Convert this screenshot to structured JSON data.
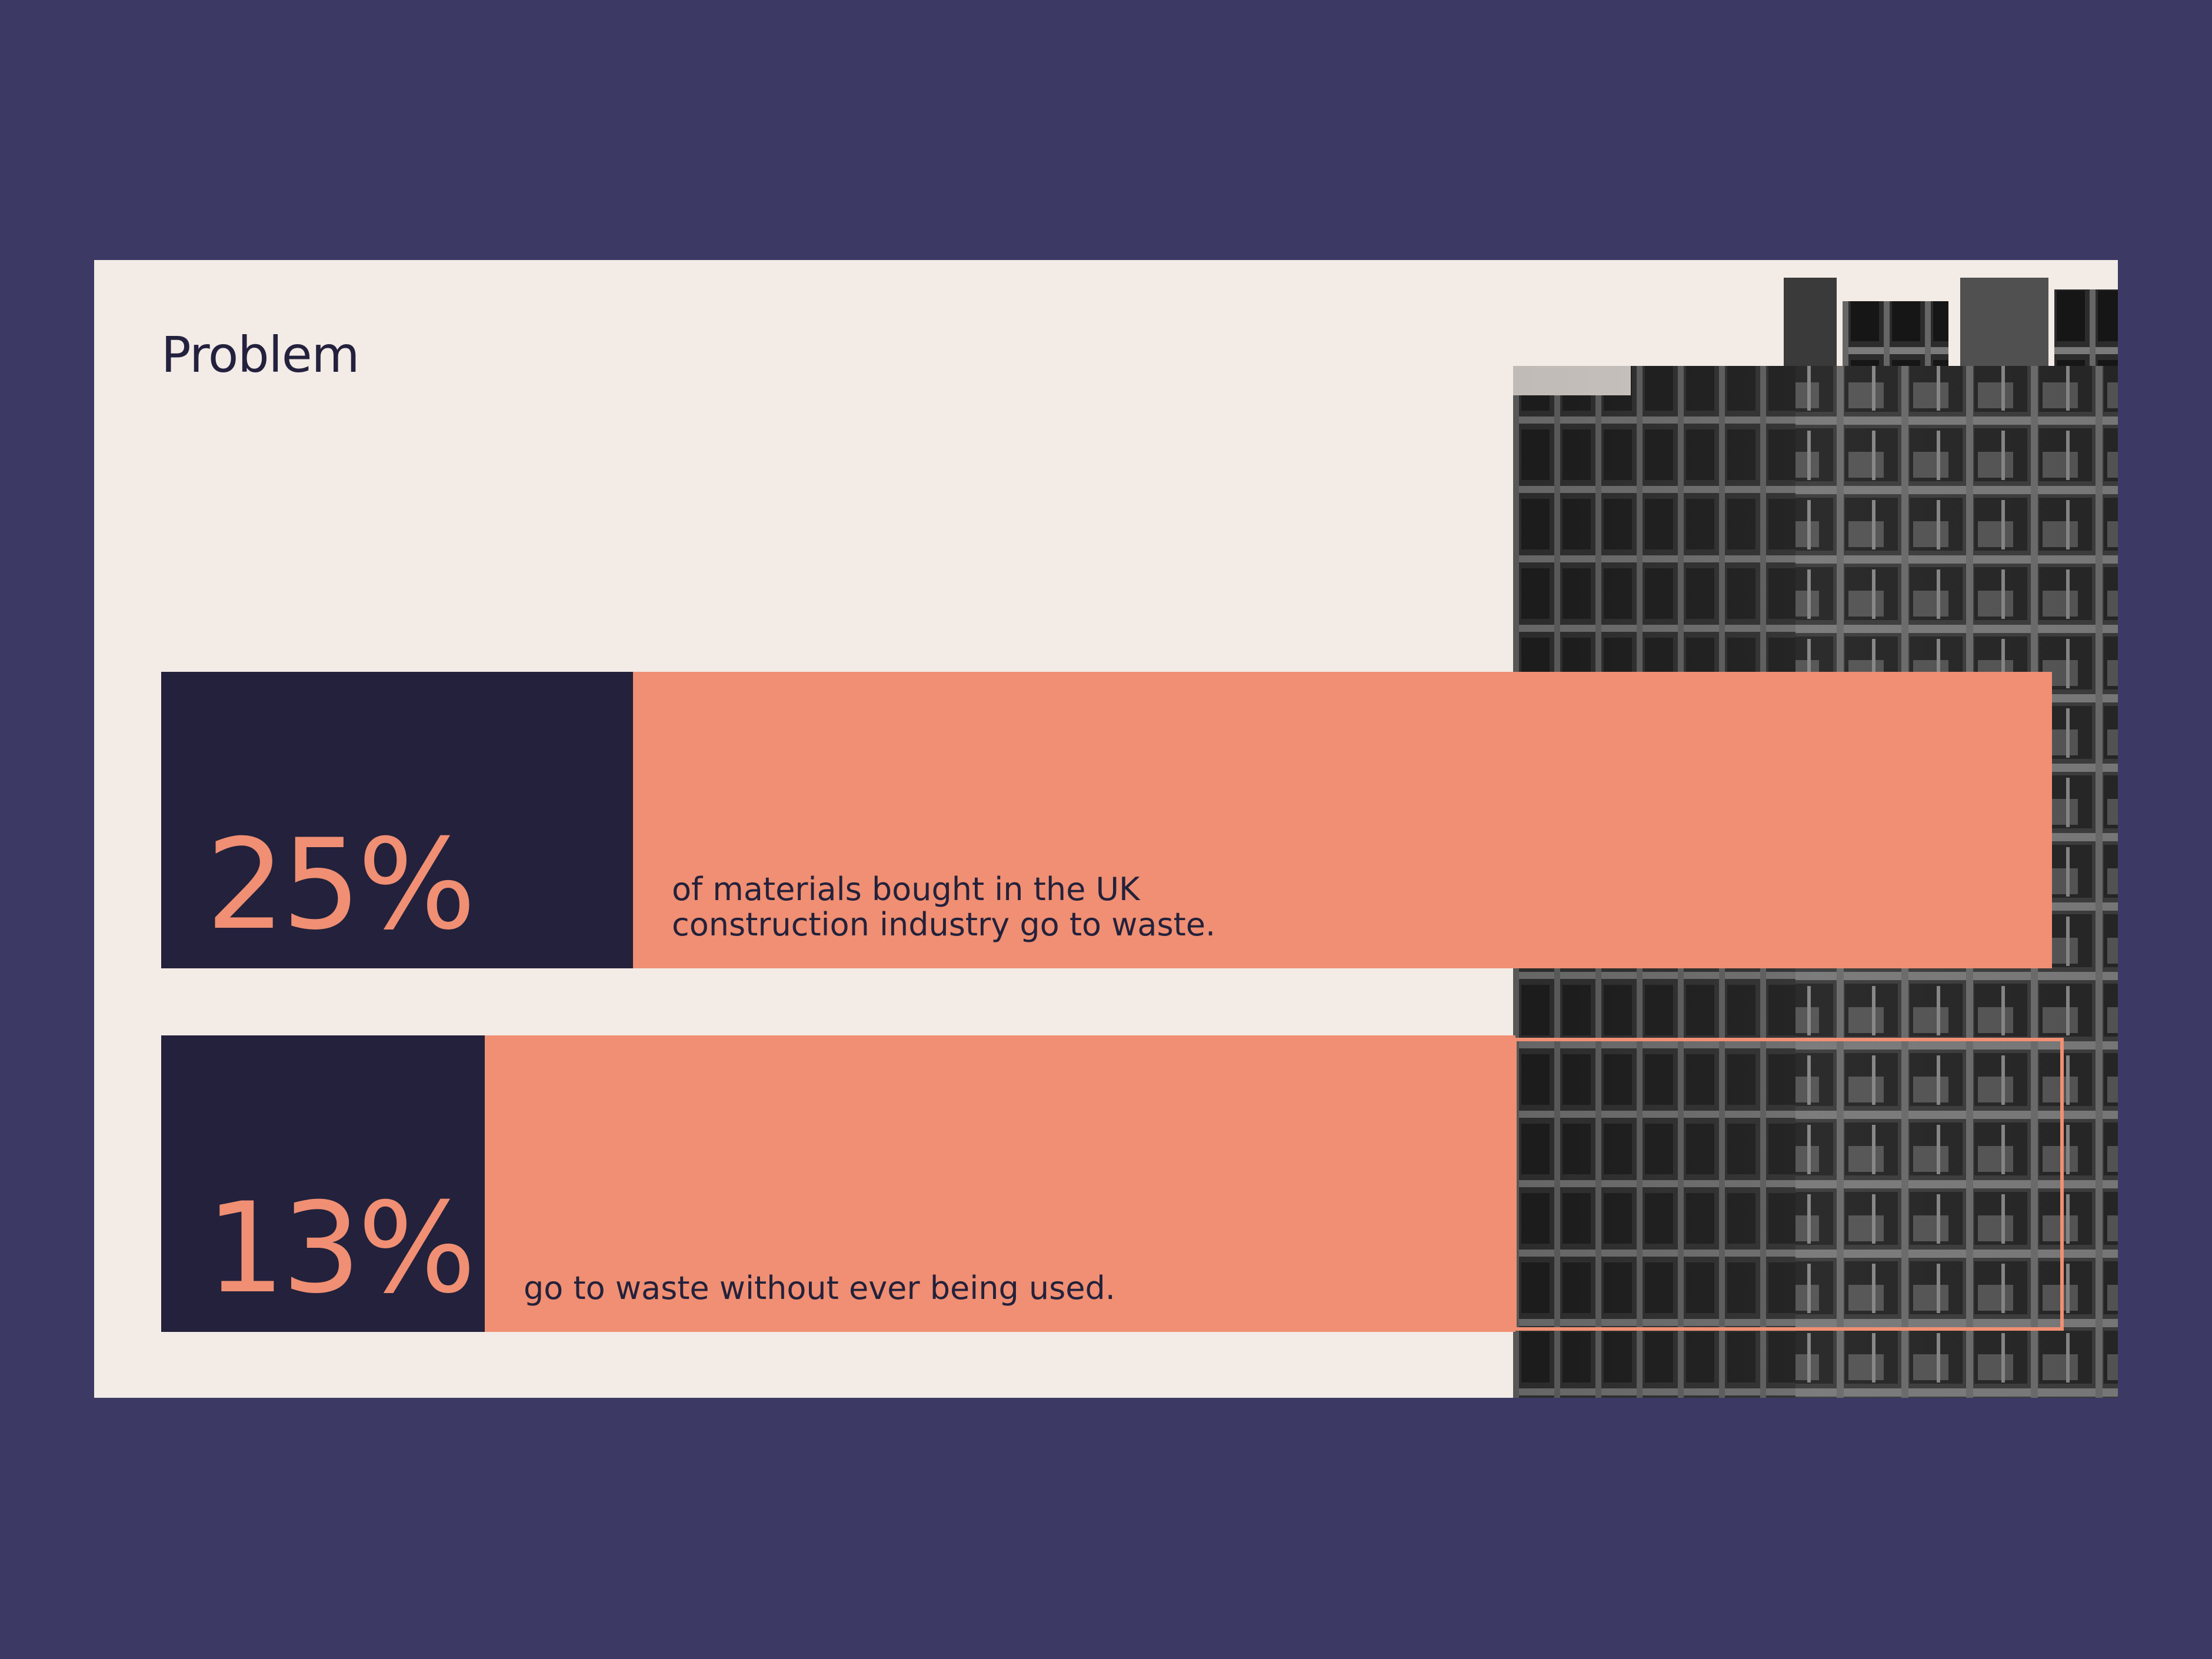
{
  "slide": {
    "title": "Problem",
    "stats": [
      {
        "value": "25%",
        "text_line1": "of materials bought in the UK",
        "text_line2": "construction industry go to waste."
      },
      {
        "value": "13%",
        "text_line1": "go to waste without ever being used."
      }
    ],
    "image": "building-under-construction-photo"
  },
  "colors": {
    "background": "#3c3a64",
    "slide": "#f3ebe6",
    "dark": "#23213b",
    "accent": "#f08f73"
  }
}
